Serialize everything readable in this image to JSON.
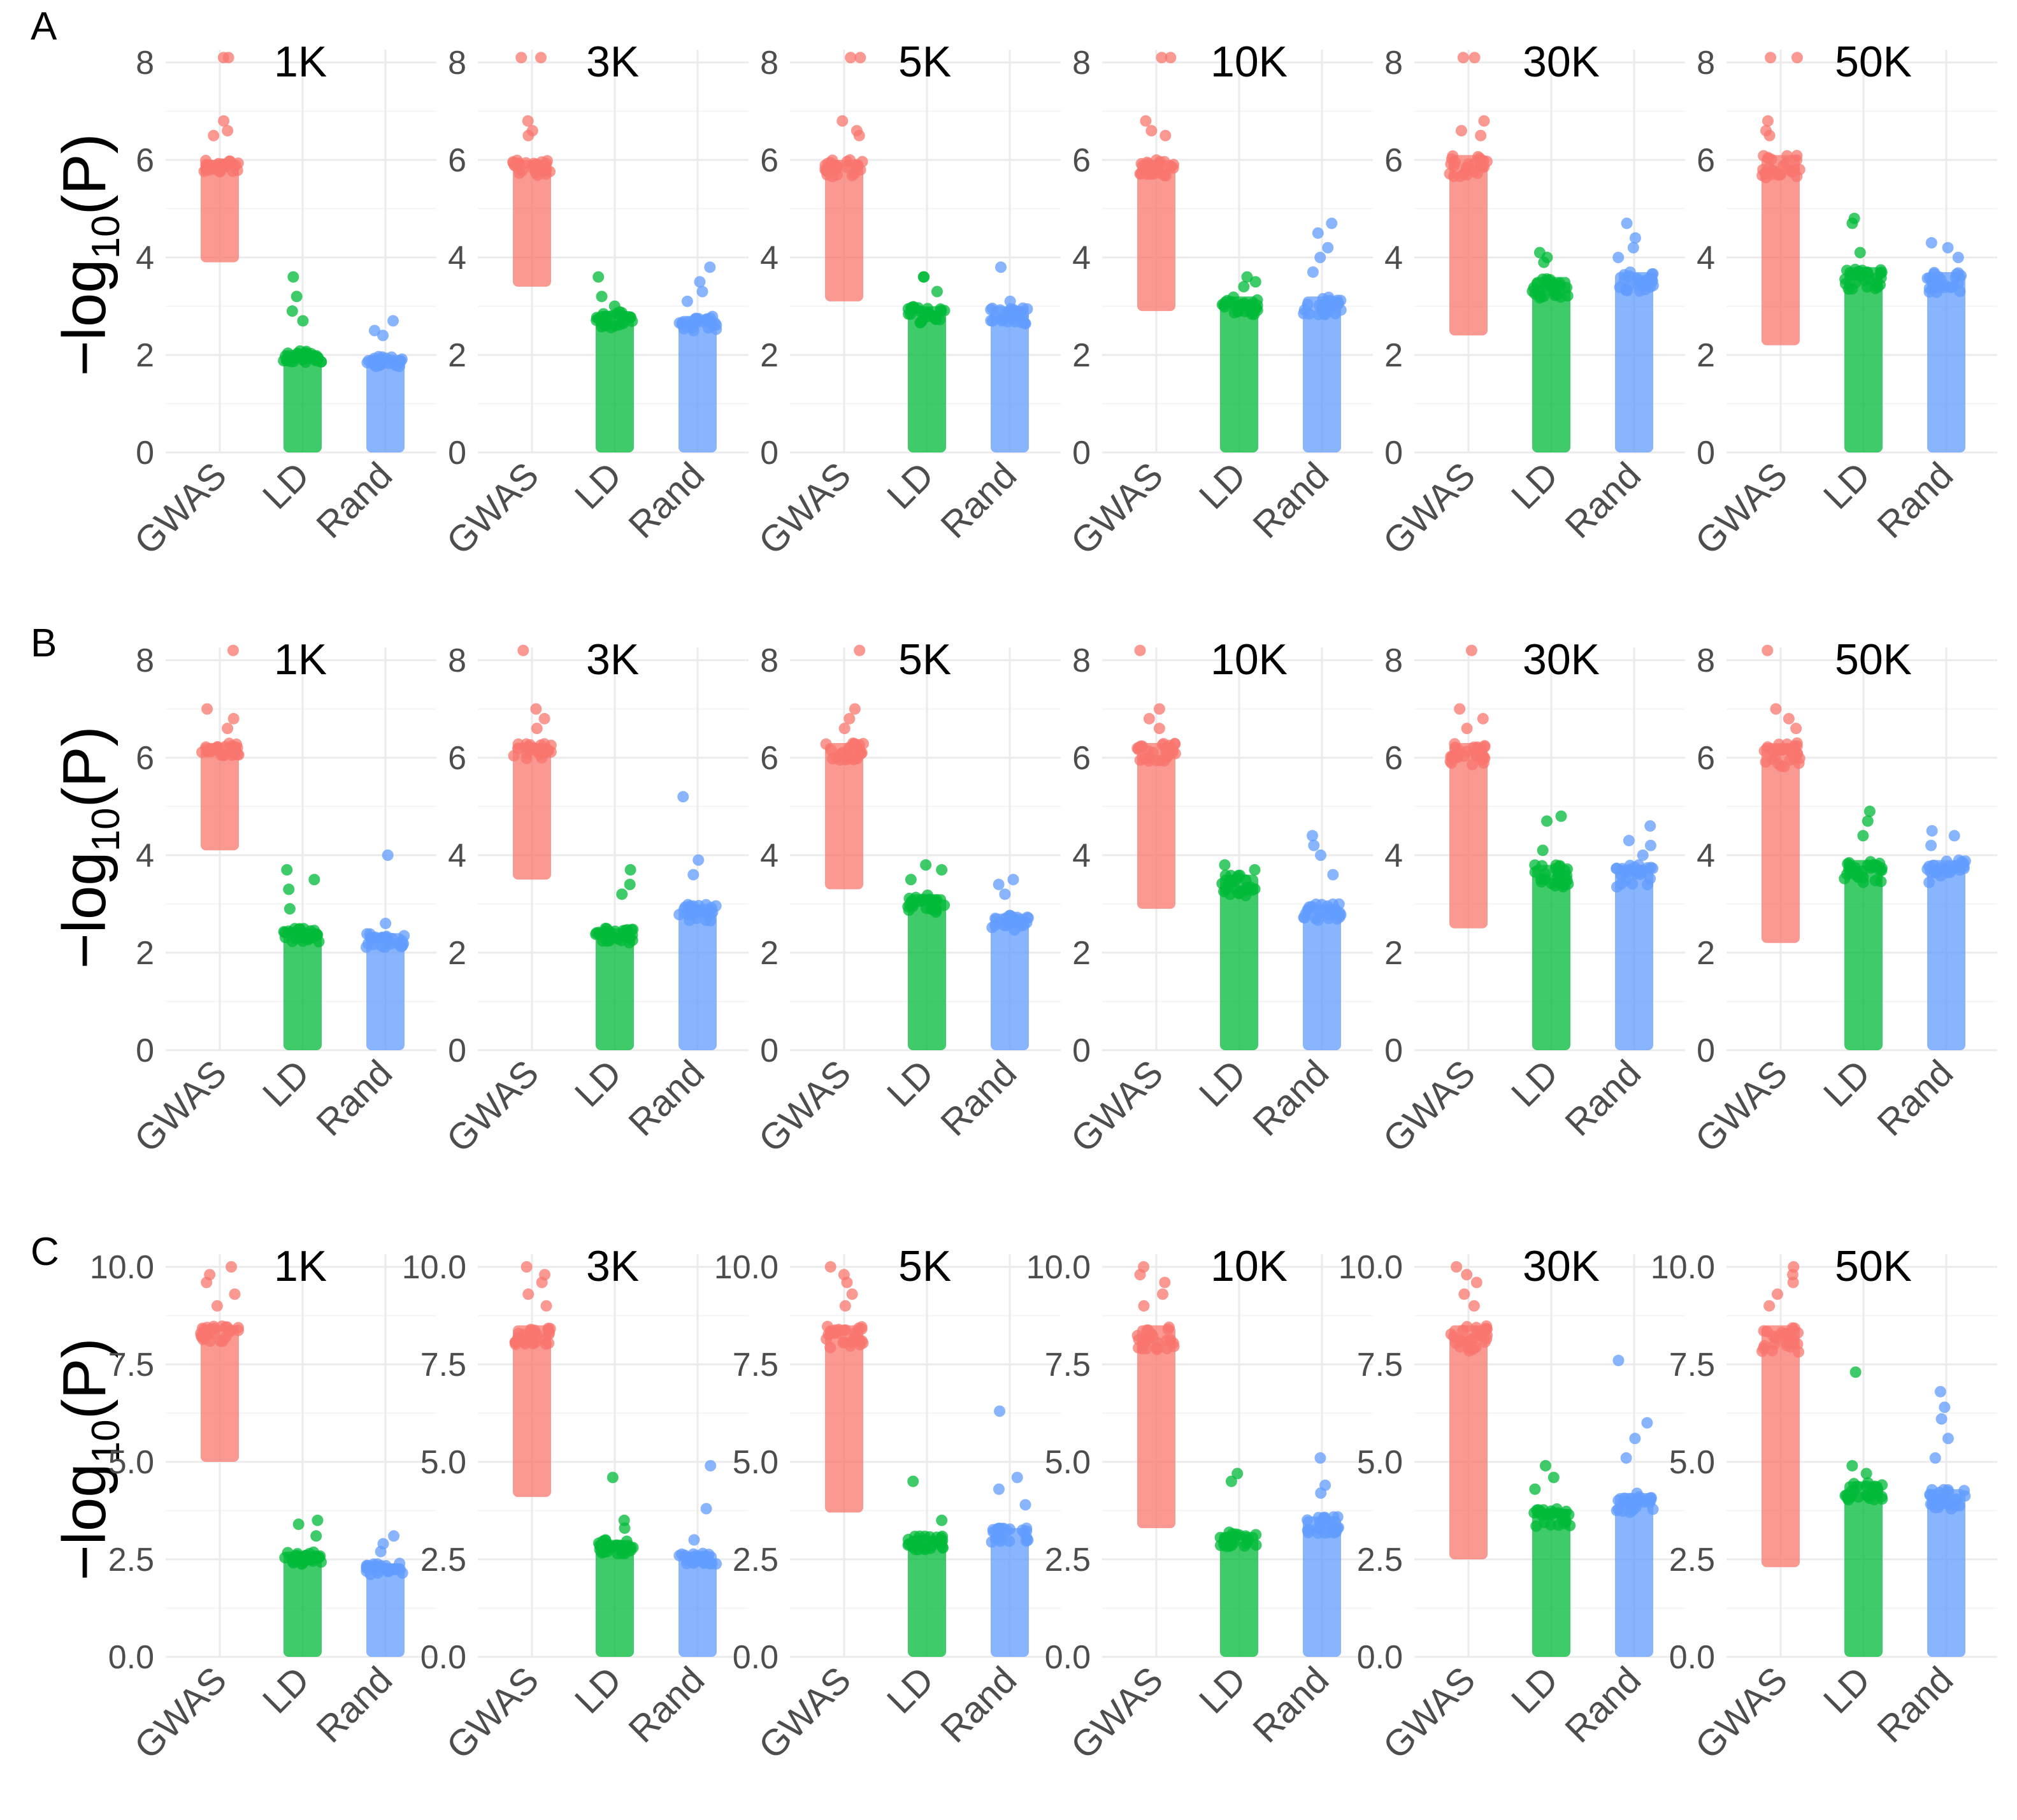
{
  "figure": {
    "y_axis_label": {
      "prefix": "−log",
      "subscript": "10",
      "suffix": "(P)"
    }
  },
  "colors": {
    "GWAS": "#F8766D",
    "LD": "#00BA38",
    "Rand": "#619CFF"
  },
  "chart_data": [
    {
      "row": "A",
      "type": "scatter",
      "ylim": [
        0,
        8
      ],
      "yticks": [
        "0",
        "2",
        "4",
        "6",
        "8"
      ],
      "categories": [
        "GWAS",
        "LD",
        "Rand"
      ],
      "panels": [
        {
          "title": "1K",
          "GWAS": {
            "min": 3.9,
            "max": 6.0,
            "outliers": [
              8.1,
              8.1,
              6.8,
              6.6,
              6.5
            ]
          },
          "LD": {
            "min": 0.0,
            "max": 2.1,
            "outliers": [
              3.6,
              3.2,
              2.9,
              2.7
            ]
          },
          "Rand": {
            "min": 0.0,
            "max": 2.0,
            "outliers": [
              2.7,
              2.5,
              2.4
            ]
          }
        },
        {
          "title": "3K",
          "GWAS": {
            "min": 3.4,
            "max": 6.0,
            "outliers": [
              8.1,
              8.1,
              6.8,
              6.6,
              6.5
            ]
          },
          "LD": {
            "min": 0.0,
            "max": 2.9,
            "outliers": [
              3.6,
              3.2,
              3.0
            ]
          },
          "Rand": {
            "min": 0.0,
            "max": 2.8,
            "outliers": [
              3.8,
              3.5,
              3.3,
              3.1
            ]
          }
        },
        {
          "title": "5K",
          "GWAS": {
            "min": 3.1,
            "max": 6.0,
            "outliers": [
              8.1,
              8.1,
              6.8,
              6.6,
              6.5
            ]
          },
          "LD": {
            "min": 0.0,
            "max": 3.0,
            "outliers": [
              3.6,
              3.6,
              3.3
            ]
          },
          "Rand": {
            "min": 0.0,
            "max": 3.0,
            "outliers": [
              3.8,
              3.1
            ]
          }
        },
        {
          "title": "10K",
          "GWAS": {
            "min": 2.9,
            "max": 6.0,
            "outliers": [
              8.1,
              8.1,
              6.8,
              6.6,
              6.5
            ]
          },
          "LD": {
            "min": 0.0,
            "max": 3.2,
            "outliers": [
              3.6,
              3.5,
              3.4
            ]
          },
          "Rand": {
            "min": 0.0,
            "max": 3.2,
            "outliers": [
              4.7,
              4.5,
              4.2,
              4.0,
              3.7
            ]
          }
        },
        {
          "title": "30K",
          "GWAS": {
            "min": 2.4,
            "max": 6.1,
            "outliers": [
              8.1,
              8.1,
              6.8,
              6.6,
              6.5
            ]
          },
          "LD": {
            "min": 0.0,
            "max": 3.6,
            "outliers": [
              4.1,
              4.0,
              3.9
            ]
          },
          "Rand": {
            "min": 0.0,
            "max": 3.7,
            "outliers": [
              4.7,
              4.4,
              4.2,
              4.0
            ]
          }
        },
        {
          "title": "50K",
          "GWAS": {
            "min": 2.2,
            "max": 6.1,
            "outliers": [
              8.1,
              8.1,
              6.8,
              6.6,
              6.5
            ]
          },
          "LD": {
            "min": 0.0,
            "max": 3.8,
            "outliers": [
              4.8,
              4.7,
              4.1
            ]
          },
          "Rand": {
            "min": 0.0,
            "max": 3.7,
            "outliers": [
              4.3,
              4.2,
              4.0
            ]
          }
        }
      ]
    },
    {
      "row": "B",
      "type": "scatter",
      "ylim": [
        0,
        8
      ],
      "yticks": [
        "0",
        "2",
        "4",
        "6",
        "8"
      ],
      "categories": [
        "GWAS",
        "LD",
        "Rand"
      ],
      "panels": [
        {
          "title": "1K",
          "GWAS": {
            "min": 4.1,
            "max": 6.3,
            "outliers": [
              8.2,
              7.0,
              6.8,
              6.6
            ]
          },
          "LD": {
            "min": 0.0,
            "max": 2.5,
            "outliers": [
              3.7,
              3.5,
              3.3,
              2.9
            ]
          },
          "Rand": {
            "min": 0.0,
            "max": 2.4,
            "outliers": [
              4.0,
              2.6
            ]
          }
        },
        {
          "title": "3K",
          "GWAS": {
            "min": 3.5,
            "max": 6.3,
            "outliers": [
              8.2,
              7.0,
              6.8,
              6.6
            ]
          },
          "LD": {
            "min": 0.0,
            "max": 2.5,
            "outliers": [
              3.7,
              3.4,
              3.2
            ]
          },
          "Rand": {
            "min": 0.0,
            "max": 3.0,
            "outliers": [
              5.2,
              3.9,
              3.6
            ]
          }
        },
        {
          "title": "5K",
          "GWAS": {
            "min": 3.3,
            "max": 6.3,
            "outliers": [
              8.2,
              7.0,
              6.8,
              6.6
            ]
          },
          "LD": {
            "min": 0.0,
            "max": 3.2,
            "outliers": [
              3.8,
              3.7,
              3.5
            ]
          },
          "Rand": {
            "min": 0.0,
            "max": 2.8,
            "outliers": [
              3.5,
              3.4,
              3.2
            ]
          }
        },
        {
          "title": "10K",
          "GWAS": {
            "min": 2.9,
            "max": 6.3,
            "outliers": [
              8.2,
              7.0,
              6.8,
              6.6
            ]
          },
          "LD": {
            "min": 0.0,
            "max": 3.6,
            "outliers": [
              3.8,
              3.7
            ]
          },
          "Rand": {
            "min": 0.0,
            "max": 3.0,
            "outliers": [
              4.4,
              4.2,
              4.0,
              3.6
            ]
          }
        },
        {
          "title": "30K",
          "GWAS": {
            "min": 2.5,
            "max": 6.3,
            "outliers": [
              8.2,
              7.0,
              6.8,
              6.6
            ]
          },
          "LD": {
            "min": 0.0,
            "max": 3.8,
            "outliers": [
              4.8,
              4.7,
              4.1
            ]
          },
          "Rand": {
            "min": 0.0,
            "max": 3.8,
            "outliers": [
              4.6,
              4.3,
              4.2,
              4.0
            ]
          }
        },
        {
          "title": "50K",
          "GWAS": {
            "min": 2.2,
            "max": 6.3,
            "outliers": [
              8.2,
              7.0,
              6.8,
              6.6
            ]
          },
          "LD": {
            "min": 0.0,
            "max": 3.9,
            "outliers": [
              4.9,
              4.7,
              4.4
            ]
          },
          "Rand": {
            "min": 0.0,
            "max": 3.9,
            "outliers": [
              4.5,
              4.4,
              4.2
            ]
          }
        }
      ]
    },
    {
      "row": "C",
      "type": "scatter",
      "ylim": [
        0,
        10
      ],
      "yticks": [
        "0.0",
        "2.5",
        "5.0",
        "7.5",
        "10.0"
      ],
      "categories": [
        "GWAS",
        "LD",
        "Rand"
      ],
      "panels": [
        {
          "title": "1K",
          "GWAS": {
            "min": 5.0,
            "max": 8.5,
            "outliers": [
              10.0,
              9.8,
              9.6,
              9.3,
              9.0
            ]
          },
          "LD": {
            "min": 0.0,
            "max": 2.7,
            "outliers": [
              3.5,
              3.4,
              3.1
            ]
          },
          "Rand": {
            "min": 0.0,
            "max": 2.4,
            "outliers": [
              3.1,
              2.9,
              2.7
            ]
          }
        },
        {
          "title": "3K",
          "GWAS": {
            "min": 4.1,
            "max": 8.5,
            "outliers": [
              10.0,
              9.8,
              9.6,
              9.3,
              9.0
            ]
          },
          "LD": {
            "min": 0.0,
            "max": 3.0,
            "outliers": [
              4.6,
              3.5,
              3.3
            ]
          },
          "Rand": {
            "min": 0.0,
            "max": 2.7,
            "outliers": [
              4.9,
              3.8,
              3.0
            ]
          }
        },
        {
          "title": "5K",
          "GWAS": {
            "min": 3.7,
            "max": 8.5,
            "outliers": [
              10.0,
              9.8,
              9.6,
              9.3,
              9.0
            ]
          },
          "LD": {
            "min": 0.0,
            "max": 3.1,
            "outliers": [
              4.5,
              3.5
            ]
          },
          "Rand": {
            "min": 0.0,
            "max": 3.3,
            "outliers": [
              6.3,
              4.6,
              4.3,
              3.9
            ]
          }
        },
        {
          "title": "10K",
          "GWAS": {
            "min": 3.3,
            "max": 8.5,
            "outliers": [
              10.0,
              9.8,
              9.6,
              9.3,
              9.0
            ]
          },
          "LD": {
            "min": 0.0,
            "max": 3.2,
            "outliers": [
              4.7,
              4.5
            ]
          },
          "Rand": {
            "min": 0.0,
            "max": 3.6,
            "outliers": [
              5.1,
              4.4,
              4.2
            ]
          }
        },
        {
          "title": "30K",
          "GWAS": {
            "min": 2.5,
            "max": 8.5,
            "outliers": [
              10.0,
              9.8,
              9.6,
              9.3,
              9.0
            ]
          },
          "LD": {
            "min": 0.0,
            "max": 3.8,
            "outliers": [
              4.9,
              4.6,
              4.3
            ]
          },
          "Rand": {
            "min": 0.0,
            "max": 4.2,
            "outliers": [
              7.6,
              6.0,
              5.6,
              5.1
            ]
          }
        },
        {
          "title": "50K",
          "GWAS": {
            "min": 2.3,
            "max": 8.5,
            "outliers": [
              10.0,
              9.8,
              9.6,
              9.3,
              9.0
            ]
          },
          "LD": {
            "min": 0.0,
            "max": 4.5,
            "outliers": [
              7.3,
              4.9,
              4.7
            ]
          },
          "Rand": {
            "min": 0.0,
            "max": 4.3,
            "outliers": [
              6.8,
              6.4,
              6.1,
              5.6,
              5.1
            ]
          }
        }
      ]
    }
  ]
}
